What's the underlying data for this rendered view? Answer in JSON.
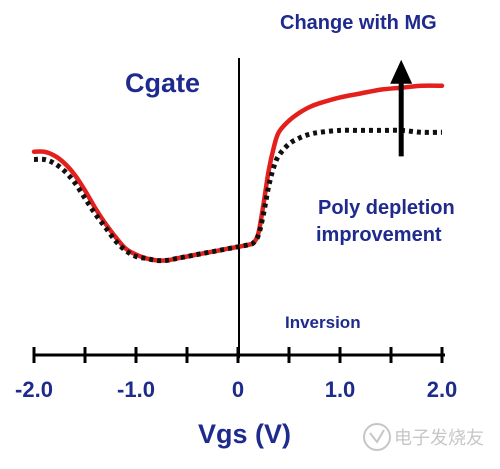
{
  "chart_data": {
    "type": "line",
    "xlabel": "Vgs (V)",
    "ylabel": "Cgate",
    "xlim": [
      -2.0,
      2.0
    ],
    "x_ticks": [
      -2.0,
      -1.5,
      -1.0,
      -0.5,
      0,
      0.5,
      1.0,
      1.5,
      2.0
    ],
    "x_tick_labels": [
      "-2.0",
      "-1.0",
      "0",
      "1.0",
      "2.0"
    ],
    "y_ticks_shown": false,
    "grid": false,
    "legend": "none",
    "colors": {
      "series_1": "#e4201c",
      "series_2": "#111111",
      "text": "#1e2a8c"
    },
    "series": [
      {
        "style": "solid",
        "color": "#e4201c",
        "x": [
          -2.0,
          -1.9,
          -1.8,
          -1.7,
          -1.6,
          -1.5,
          -1.4,
          -1.3,
          -1.2,
          -1.1,
          -1.0,
          -0.9,
          -0.8,
          -0.7,
          -0.6,
          -0.5,
          -0.4,
          -0.3,
          -0.2,
          -0.1,
          0.0,
          0.1,
          0.15,
          0.2,
          0.25,
          0.3,
          0.35,
          0.4,
          0.5,
          0.6,
          0.7,
          0.8,
          1.0,
          1.2,
          1.4,
          1.6,
          1.8,
          2.0
        ],
        "y": [
          0.62,
          0.62,
          0.6,
          0.56,
          0.5,
          0.42,
          0.33,
          0.25,
          0.18,
          0.12,
          0.09,
          0.07,
          0.06,
          0.06,
          0.07,
          0.08,
          0.09,
          0.1,
          0.11,
          0.12,
          0.13,
          0.14,
          0.15,
          0.2,
          0.35,
          0.52,
          0.64,
          0.72,
          0.78,
          0.82,
          0.85,
          0.87,
          0.9,
          0.92,
          0.94,
          0.95,
          0.96,
          0.96
        ]
      },
      {
        "style": "dotted",
        "color": "#111111",
        "x": [
          -2.0,
          -1.9,
          -1.8,
          -1.7,
          -1.6,
          -1.5,
          -1.4,
          -1.3,
          -1.2,
          -1.1,
          -1.0,
          -0.9,
          -0.8,
          -0.7,
          -0.6,
          -0.5,
          -0.4,
          -0.3,
          -0.2,
          -0.1,
          0.0,
          0.1,
          0.15,
          0.2,
          0.25,
          0.3,
          0.35,
          0.4,
          0.5,
          0.6,
          0.7,
          0.8,
          1.0,
          1.2,
          1.4,
          1.6,
          1.8,
          2.0
        ],
        "y": [
          0.58,
          0.58,
          0.56,
          0.52,
          0.46,
          0.38,
          0.3,
          0.23,
          0.16,
          0.11,
          0.08,
          0.07,
          0.06,
          0.06,
          0.07,
          0.08,
          0.09,
          0.1,
          0.11,
          0.12,
          0.13,
          0.14,
          0.15,
          0.19,
          0.3,
          0.44,
          0.54,
          0.6,
          0.66,
          0.69,
          0.71,
          0.72,
          0.73,
          0.73,
          0.73,
          0.73,
          0.72,
          0.72
        ]
      }
    ],
    "annotations": {
      "top": "Change with MG",
      "middle_line1": "Poly depletion",
      "middle_line2": "improvement",
      "bottom": "Inversion"
    },
    "arrow": {
      "x": 1.6,
      "from_series": 2,
      "to_series": 1
    }
  },
  "watermark": "电子发烧友"
}
